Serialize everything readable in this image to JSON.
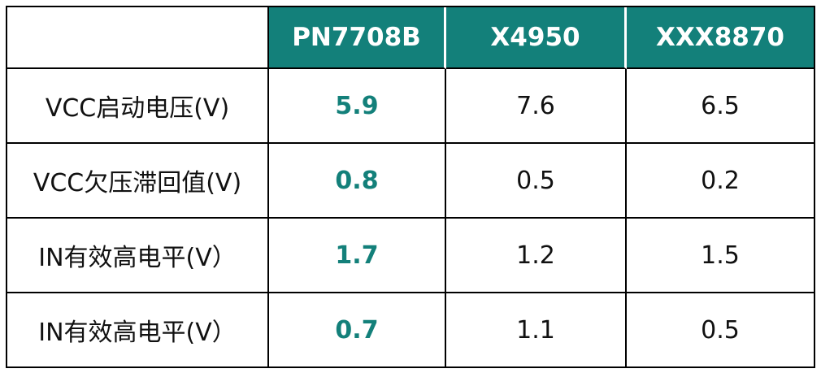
{
  "table": {
    "columns": [
      "PN7708B",
      "X4950",
      "XXX8870"
    ],
    "rows": [
      {
        "label": "VCC启动电压(V)",
        "values": [
          "5.9",
          "7.6",
          "6.5"
        ]
      },
      {
        "label": "VCC欠压滞回值(V)",
        "values": [
          "0.8",
          "0.5",
          "0.2"
        ]
      },
      {
        "label": "IN有效高电平(V）",
        "values": [
          "1.7",
          "1.2",
          "1.5"
        ]
      },
      {
        "label": "IN有效高电平(V）",
        "values": [
          "0.7",
          "1.1",
          "0.5"
        ]
      }
    ]
  }
}
